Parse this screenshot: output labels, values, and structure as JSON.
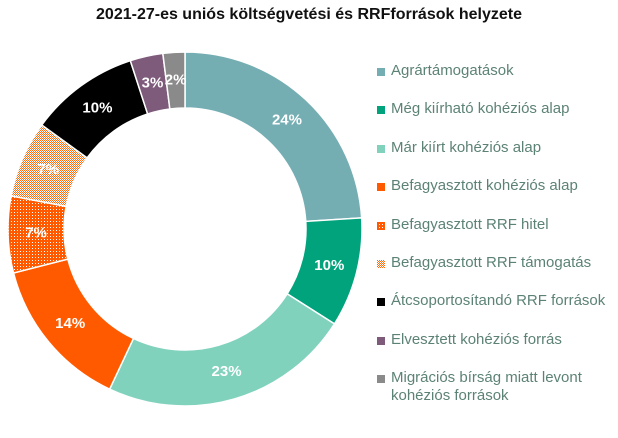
{
  "chart_data": {
    "type": "pie",
    "subtype": "donut",
    "title": "2021-27-es uniós költségvetési és RRFforrások helyzete",
    "legend_position": "right",
    "slices": [
      {
        "label": "Agrártámogatások",
        "value": 24,
        "display": "24%",
        "color": "#74aeb3",
        "pattern": "solid"
      },
      {
        "label": "Még kiírható kohéziós alap",
        "value": 10,
        "display": "10%",
        "color": "#00a37b",
        "pattern": "solid"
      },
      {
        "label": "Már kiírt kohéziós alap",
        "value": 23,
        "display": "23%",
        "color": "#80d2bd",
        "pattern": "solid"
      },
      {
        "label": "Befagyasztott kohéziós alap",
        "value": 14,
        "display": "14%",
        "color": "#ff5a00",
        "pattern": "solid"
      },
      {
        "label": "Befagyasztott RRF hitel",
        "value": 7,
        "display": "7%",
        "color": "#ff5a00",
        "pattern": "dense"
      },
      {
        "label": "Befagyasztott RRF támogatás",
        "value": 7,
        "display": "7%",
        "color": "#ff6a10",
        "pattern": "checker"
      },
      {
        "label": "Átcsoportosítandó RRF források",
        "value": 10,
        "display": "10%",
        "color": "#000000",
        "pattern": "solid"
      },
      {
        "label": "Elvesztett kohéziós forrás",
        "value": 3,
        "display": "3%",
        "color": "#7e5a7b",
        "pattern": "solid"
      },
      {
        "label": "Migrációs bírság miatt levont kohéziós források",
        "value": 2,
        "display": "2%",
        "color": "#8a8a8a",
        "pattern": "solid"
      }
    ]
  }
}
